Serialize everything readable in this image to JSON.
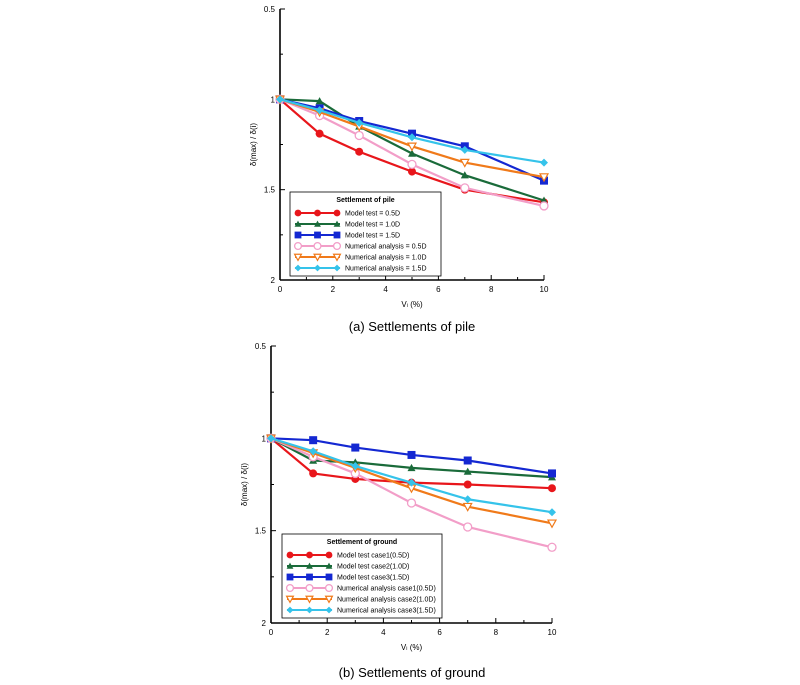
{
  "chart_data": [
    {
      "type": "line",
      "caption": "(a)  Settlements  of  pile",
      "xlabel": "Vₗ (%)",
      "ylabel": "δ(max) / δ(i)",
      "xlim": [
        0,
        10
      ],
      "ylim": [
        0.5,
        2
      ],
      "y_inverted": true,
      "xticks": [
        "0",
        "2",
        "4",
        "6",
        "8",
        "10"
      ],
      "yticks": [
        "0.5",
        "1",
        "1.5",
        "2"
      ],
      "legend_title": "Settlement of pile",
      "legend_position": "bottom-left",
      "series": [
        {
          "name": "Model test = 0.5D",
          "color": "#e8161b",
          "marker": "circle",
          "x": [
            0,
            1.5,
            3,
            5,
            7,
            10
          ],
          "y": [
            1.0,
            1.19,
            1.29,
            1.4,
            1.5,
            1.57
          ]
        },
        {
          "name": "Model test = 1.0D",
          "color": "#1a6b3a",
          "marker": "triangle-up",
          "x": [
            0,
            1.5,
            3,
            5,
            7,
            10
          ],
          "y": [
            1.0,
            1.01,
            1.15,
            1.3,
            1.42,
            1.56
          ]
        },
        {
          "name": "Model test = 1.5D",
          "color": "#1428d2",
          "marker": "square",
          "x": [
            0,
            1.5,
            3,
            5,
            7,
            10
          ],
          "y": [
            1.0,
            1.05,
            1.12,
            1.19,
            1.26,
            1.45
          ]
        },
        {
          "name": "Numerical analysis = 0.5D",
          "color": "#f29ec8",
          "marker": "circle-open",
          "x": [
            0,
            1.5,
            3,
            5,
            7,
            10
          ],
          "y": [
            1.0,
            1.09,
            1.2,
            1.36,
            1.49,
            1.59
          ]
        },
        {
          "name": "Numerical analysis = 1.0D",
          "color": "#f07a1a",
          "marker": "triangle-down-open",
          "x": [
            0,
            1.5,
            3,
            5,
            7,
            10
          ],
          "y": [
            1.0,
            1.07,
            1.15,
            1.26,
            1.35,
            1.43
          ]
        },
        {
          "name": "Numerical analysis = 1.5D",
          "color": "#35c3ea",
          "marker": "diamond",
          "x": [
            0,
            1.5,
            3,
            5,
            7,
            10
          ],
          "y": [
            1.0,
            1.06,
            1.13,
            1.21,
            1.28,
            1.35
          ]
        }
      ]
    },
    {
      "type": "line",
      "caption": "(b)  Settlements  of  ground",
      "xlabel": "Vₗ (%)",
      "ylabel": "δ(max) / δ(i)",
      "xlim": [
        0,
        10
      ],
      "ylim": [
        0.5,
        2
      ],
      "y_inverted": true,
      "xticks": [
        "0",
        "2",
        "4",
        "6",
        "8",
        "10"
      ],
      "yticks": [
        "0.5",
        "1",
        "1.5",
        "2"
      ],
      "legend_title": "Settlement of ground",
      "legend_position": "bottom-left",
      "series": [
        {
          "name": "Model test case1(0.5D)",
          "color": "#e8161b",
          "marker": "circle",
          "x": [
            0,
            1.5,
            3,
            5,
            7,
            10
          ],
          "y": [
            1.0,
            1.19,
            1.22,
            1.24,
            1.25,
            1.27
          ]
        },
        {
          "name": "Model test case2(1.0D)",
          "color": "#1a6b3a",
          "marker": "triangle-up",
          "x": [
            0,
            1.5,
            3,
            5,
            7,
            10
          ],
          "y": [
            1.0,
            1.12,
            1.13,
            1.16,
            1.18,
            1.21
          ]
        },
        {
          "name": "Model test case3(1.5D)",
          "color": "#1428d2",
          "marker": "square",
          "x": [
            0,
            1.5,
            3,
            5,
            7,
            10
          ],
          "y": [
            1.0,
            1.01,
            1.05,
            1.09,
            1.12,
            1.19
          ]
        },
        {
          "name": "Numerical analysis case1(0.5D)",
          "color": "#f29ec8",
          "marker": "circle-open",
          "x": [
            0,
            1.5,
            3,
            5,
            7,
            10
          ],
          "y": [
            1.0,
            1.1,
            1.19,
            1.35,
            1.48,
            1.59
          ]
        },
        {
          "name": "Numerical analysis case2(1.0D)",
          "color": "#f07a1a",
          "marker": "triangle-down-open",
          "x": [
            0,
            1.5,
            3,
            5,
            7,
            10
          ],
          "y": [
            1.0,
            1.08,
            1.16,
            1.27,
            1.37,
            1.46
          ]
        },
        {
          "name": "Numerical analysis case3(1.5D)",
          "color": "#35c3ea",
          "marker": "diamond",
          "x": [
            0,
            1.5,
            3,
            5,
            7,
            10
          ],
          "y": [
            1.0,
            1.07,
            1.15,
            1.24,
            1.33,
            1.4
          ]
        }
      ]
    }
  ]
}
